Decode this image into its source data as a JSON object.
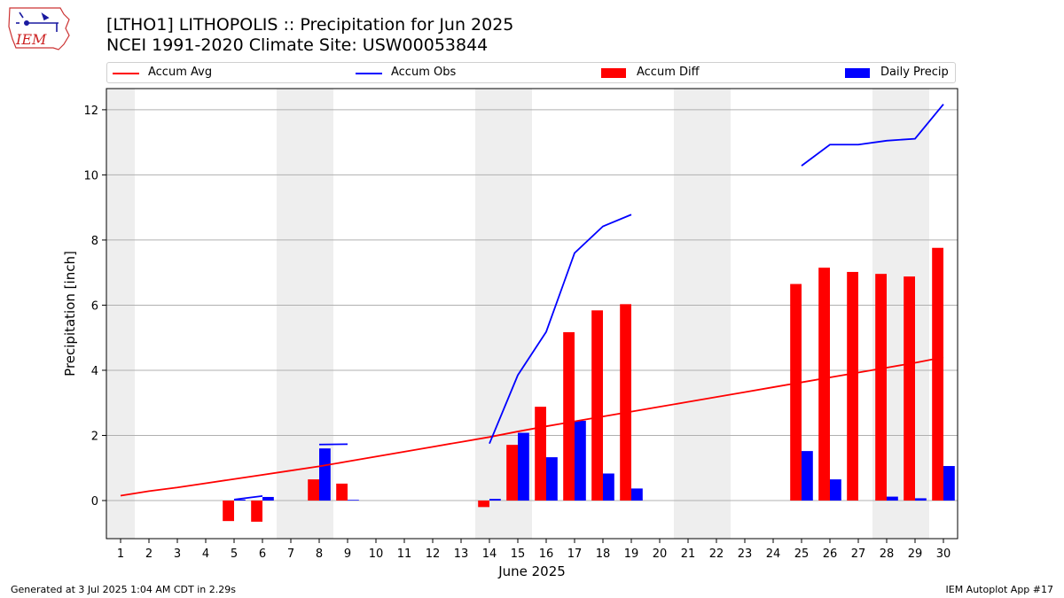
{
  "header": {
    "title": "[LTHO1] LITHOPOLIS :: Precipitation for Jun 2025",
    "subtitle": "NCEI 1991-2020 Climate Site: USW00053844"
  },
  "logo": {
    "text": "IEM",
    "icon": "iowa-state-weather-logo"
  },
  "legend": {
    "accum_avg": "Accum Avg",
    "accum_obs": "Accum Obs",
    "accum_diff": "Accum Diff",
    "daily_precip": "Daily Precip"
  },
  "footer": {
    "generated": "Generated at 3 Jul 2025 1:04 AM CDT in 2.29s",
    "app": "IEM Autoplot App #17"
  },
  "colors": {
    "avg": "#ff0000",
    "obs": "#0000ff",
    "diff": "#ff0000",
    "daily": "#0000ff",
    "weekend_band": "#eeeeee",
    "grid": "#b0b0b0"
  },
  "chart_data": {
    "type": "bar",
    "xlabel": "June 2025",
    "ylabel": "Precipitation [inch]",
    "x": [
      1,
      2,
      3,
      4,
      5,
      6,
      7,
      8,
      9,
      10,
      11,
      12,
      13,
      14,
      15,
      16,
      17,
      18,
      19,
      20,
      21,
      22,
      23,
      24,
      25,
      26,
      27,
      28,
      29,
      30
    ],
    "xlim": [
      0.5,
      30.5
    ],
    "ylim": [
      -1.17,
      12.65
    ],
    "yticks": [
      0,
      2,
      4,
      6,
      8,
      10,
      12
    ],
    "grid": "horizontal",
    "legend_position": "top",
    "weekend_bands": [
      [
        0.5,
        1.5
      ],
      [
        6.5,
        8.5
      ],
      [
        13.5,
        15.5
      ],
      [
        20.5,
        22.5
      ],
      [
        27.5,
        29.5
      ]
    ],
    "series": [
      {
        "name": "Accum Avg",
        "kind": "line",
        "values": [
          0.15,
          0.29,
          0.4,
          0.53,
          0.66,
          0.79,
          0.92,
          1.05,
          1.2,
          1.35,
          1.5,
          1.65,
          1.8,
          1.95,
          2.12,
          2.28,
          2.43,
          2.58,
          2.73,
          2.88,
          3.03,
          3.18,
          3.33,
          3.48,
          3.63,
          3.78,
          3.93,
          4.08,
          4.23,
          4.4
        ]
      },
      {
        "name": "Accum Obs",
        "kind": "line",
        "values": [
          null,
          null,
          null,
          null,
          0.03,
          0.14,
          null,
          1.72,
          1.73,
          null,
          null,
          null,
          null,
          1.75,
          3.85,
          5.18,
          7.6,
          8.42,
          8.78,
          null,
          null,
          null,
          null,
          null,
          10.28,
          10.93,
          10.93,
          11.05,
          11.11,
          12.17
        ]
      },
      {
        "name": "Accum Diff",
        "kind": "bar",
        "values": [
          null,
          null,
          null,
          null,
          -0.63,
          -0.65,
          null,
          0.65,
          0.52,
          null,
          null,
          null,
          null,
          -0.2,
          1.71,
          2.88,
          5.17,
          5.84,
          6.03,
          null,
          null,
          null,
          null,
          null,
          6.65,
          7.15,
          7.02,
          6.96,
          6.88,
          7.76
        ]
      },
      {
        "name": "Daily Precip",
        "kind": "bar",
        "values": [
          null,
          null,
          null,
          null,
          0.03,
          0.11,
          null,
          1.6,
          0.02,
          null,
          null,
          null,
          null,
          0.05,
          2.08,
          1.33,
          2.45,
          0.83,
          0.37,
          null,
          null,
          null,
          null,
          null,
          1.52,
          0.65,
          0.0,
          0.12,
          0.07,
          1.06
        ]
      }
    ]
  }
}
